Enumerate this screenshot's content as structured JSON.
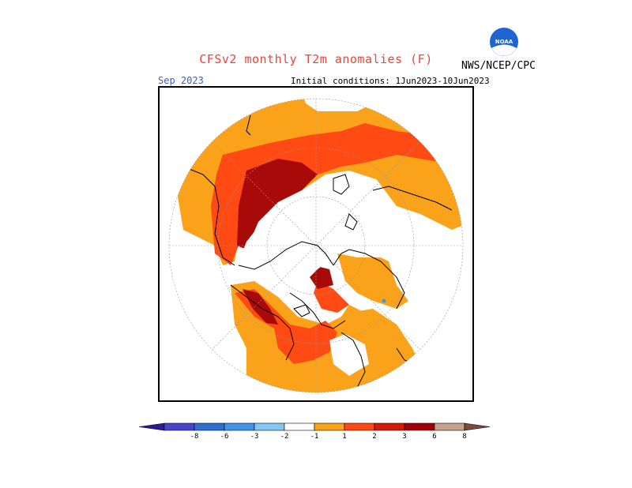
{
  "header": {
    "title": "CFSv2 monthly T2m anomalies (F)",
    "agency": "NWS/NCEP/CPC",
    "logo_text": "NOAA",
    "valid_month": "Sep 2023",
    "initial_conditions": "Initial conditions: 1Jun2023-10Jun2023"
  },
  "colorbar": {
    "labels": [
      "-8",
      "-6",
      "-3",
      "-2",
      "-1",
      "1",
      "2",
      "3",
      "6",
      "8"
    ],
    "colors": [
      "#2a1a9c",
      "#4a44c8",
      "#2f6fd0",
      "#3f95e8",
      "#86c6f6",
      "#ffffff",
      "#f9a21a",
      "#ff4a14",
      "#d21a0a",
      "#a0000a",
      "#c8a08c",
      "#7a4a3e"
    ]
  },
  "map": {
    "projection": "north polar stereographic",
    "colors": {
      "a1": "#f9a21a",
      "a2": "#ff4a14",
      "a3": "#a80a0a",
      "cold": "#86c6f6",
      "land_line": "#000000",
      "neutral": "#ffffff"
    }
  }
}
